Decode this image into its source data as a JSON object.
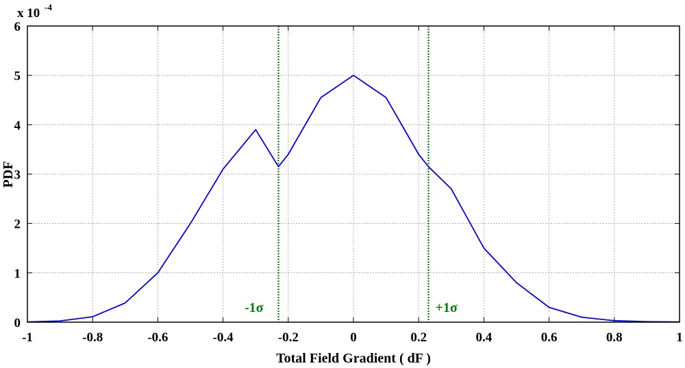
{
  "chart_data": {
    "type": "line",
    "title": "",
    "xlabel": "Total Field Gradient ( dF )",
    "ylabel": "PDF",
    "xlim": [
      -1,
      1
    ],
    "ylim": [
      0,
      6
    ],
    "xticks": [
      -1,
      -0.8,
      -0.6,
      -0.4,
      -0.2,
      0,
      0.2,
      0.4,
      0.6,
      0.8,
      1
    ],
    "xtick_labels": [
      "-1",
      "-0.8",
      "-0.6",
      "-0.4",
      "-0.2",
      "0",
      "0.2",
      "0.4",
      "0.6",
      "0.8",
      "1"
    ],
    "yticks": [
      0,
      1,
      2,
      3,
      4,
      5,
      6
    ],
    "ytick_labels": [
      "0",
      "1",
      "2",
      "3",
      "4",
      "5",
      "6"
    ],
    "y_multiplier": {
      "base": "x 10",
      "exponent": "-4"
    },
    "grid": true,
    "series": [
      {
        "color": "#0000ee",
        "x": [
          -1,
          -0.9,
          -0.8,
          -0.7,
          -0.6,
          -0.5,
          -0.4,
          -0.3,
          -0.23,
          -0.2,
          -0.1,
          0,
          0.1,
          0.2,
          0.23,
          0.3,
          0.4,
          0.5,
          0.6,
          0.7,
          0.8,
          0.9,
          1
        ],
        "y": [
          0.004,
          0.024,
          0.11,
          0.39,
          1.0,
          2.0,
          3.1,
          3.9,
          3.15,
          3.4,
          4.55,
          5.0,
          4.55,
          3.4,
          3.15,
          2.7,
          1.5,
          0.8,
          0.3,
          0.1,
          0.03,
          0.01,
          0.004
        ]
      }
    ],
    "annotations": [
      {
        "label": "-1σ",
        "x": -0.23,
        "color": "#008000",
        "line_style": "dotted"
      },
      {
        "label": "+1σ",
        "x": 0.23,
        "color": "#008000",
        "line_style": "dotted"
      }
    ]
  }
}
